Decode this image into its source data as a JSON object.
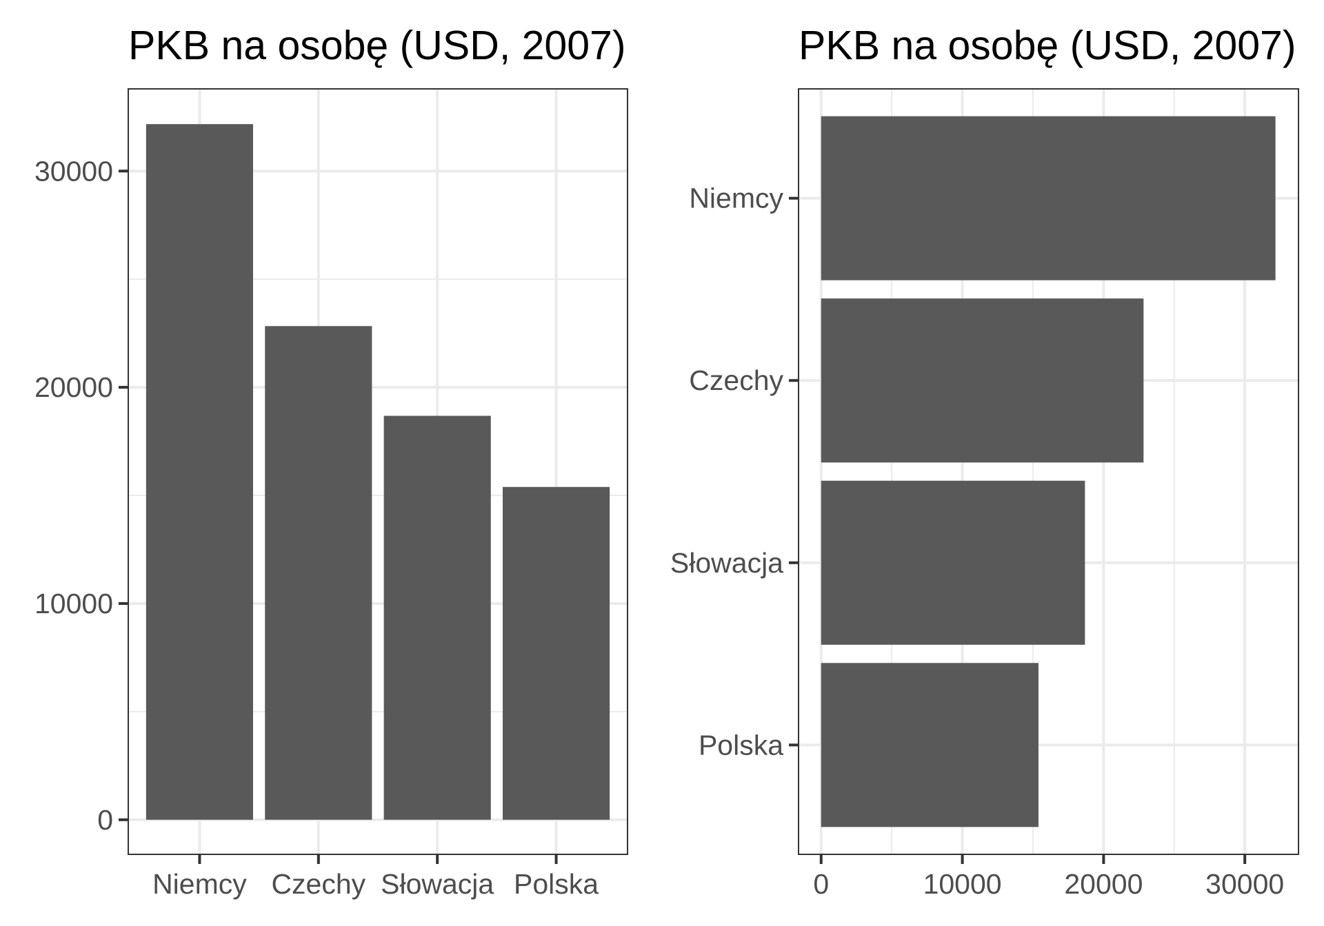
{
  "chart_data": [
    {
      "type": "bar",
      "orientation": "vertical",
      "title": "PKB na osobę (USD, 2007)",
      "categories": [
        "Niemcy",
        "Czechy",
        "Słowacja",
        "Polska"
      ],
      "values": [
        32170,
        22830,
        18680,
        15390
      ],
      "xlabel": "",
      "ylabel": "",
      "ylim": [
        -1600,
        33800
      ],
      "y_ticks": [
        0,
        10000,
        20000,
        30000
      ],
      "y_tick_labels": [
        "0",
        "10000",
        "20000",
        "30000"
      ],
      "grid": true,
      "bar_color": "#595959"
    },
    {
      "type": "bar",
      "orientation": "horizontal",
      "title": "PKB na osobę (USD, 2007)",
      "categories": [
        "Niemcy",
        "Czechy",
        "Słowacja",
        "Polska"
      ],
      "values": [
        32170,
        22830,
        18680,
        15390
      ],
      "xlabel": "",
      "ylabel": "",
      "xlim": [
        -1600,
        33800
      ],
      "x_ticks": [
        0,
        10000,
        20000,
        30000
      ],
      "x_tick_labels": [
        "0",
        "10000",
        "20000",
        "30000"
      ],
      "grid": true,
      "bar_color": "#595959"
    }
  ]
}
